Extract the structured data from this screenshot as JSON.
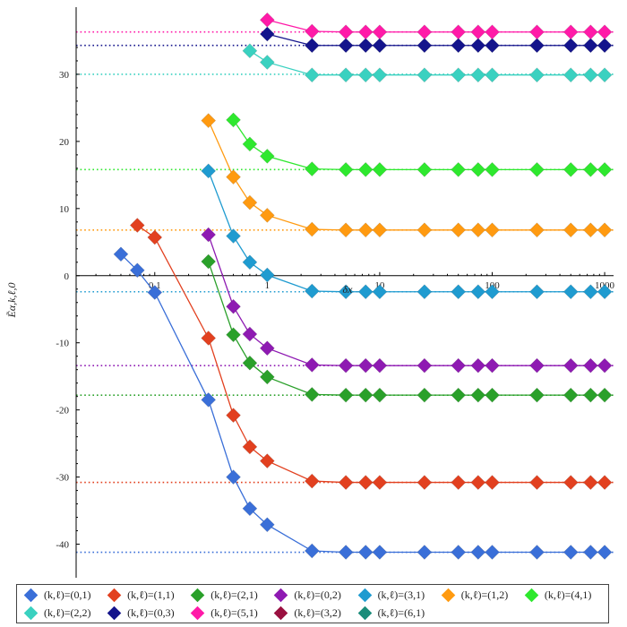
{
  "chart_data": {
    "type": "scatter",
    "title": "",
    "xlabel": "δx",
    "ylabel": "Ẽα,k,ℓ,0",
    "xscale": "log",
    "xlim": [
      0.02,
      1200
    ],
    "ylim": [
      -45,
      40
    ],
    "xticks": [
      0.1,
      1,
      10,
      100,
      1000
    ],
    "xtick_labels": [
      "0.1",
      "1",
      "10",
      "100",
      "1000"
    ],
    "yticks": [
      -40,
      -30,
      -20,
      -10,
      0,
      10,
      20,
      30
    ],
    "ytick_labels": [
      "-40",
      "-30",
      "-20",
      "-10",
      "0",
      "10",
      "20",
      "30"
    ],
    "legend_position": "bottom",
    "series": [
      {
        "name": "(k,ℓ)=(0,1)",
        "color": "#3a6fd8",
        "asymptote": -41.2,
        "x": [
          0.05,
          0.07,
          0.1,
          0.3,
          0.5,
          0.7,
          1,
          2.5,
          5,
          7.5,
          10,
          25,
          50,
          75,
          100,
          250,
          500,
          750,
          1000
        ],
        "y": [
          3.2,
          0.8,
          -2.5,
          -18.5,
          -30.0,
          -34.7,
          -37.1,
          -41.0,
          -41.2,
          -41.2,
          -41.2,
          -41.2,
          -41.2,
          -41.2,
          -41.2,
          -41.2,
          -41.2,
          -41.2,
          -41.2
        ]
      },
      {
        "name": "(k,ℓ)=(1,1)",
        "color": "#e2401f",
        "asymptote": -30.8,
        "x": [
          0.07,
          0.1,
          0.3,
          0.5,
          0.7,
          1,
          2.5,
          5,
          7.5,
          10,
          25,
          50,
          75,
          100,
          250,
          500,
          750,
          1000
        ],
        "y": [
          7.5,
          5.7,
          -9.3,
          -20.8,
          -25.5,
          -27.6,
          -30.6,
          -30.8,
          -30.8,
          -30.8,
          -30.8,
          -30.8,
          -30.8,
          -30.8,
          -30.8,
          -30.8,
          -30.8,
          -30.8
        ]
      },
      {
        "name": "(k,ℓ)=(2,1)",
        "color": "#2aa02a",
        "asymptote": -17.8,
        "x": [
          0.3,
          0.5,
          0.7,
          1,
          2.5,
          5,
          7.5,
          10,
          25,
          50,
          75,
          100,
          250,
          500,
          750,
          1000
        ],
        "y": [
          2.1,
          -8.8,
          -13.0,
          -15.1,
          -17.7,
          -17.8,
          -17.8,
          -17.8,
          -17.8,
          -17.8,
          -17.8,
          -17.8,
          -17.8,
          -17.8,
          -17.8,
          -17.8
        ]
      },
      {
        "name": "(k,ℓ)=(0,2)",
        "color": "#8e1ab2",
        "asymptote": -13.4,
        "x": [
          0.3,
          0.5,
          0.7,
          1,
          2.5,
          5,
          7.5,
          10,
          25,
          50,
          75,
          100,
          250,
          500,
          750,
          1000
        ],
        "y": [
          6.1,
          -4.6,
          -8.7,
          -10.8,
          -13.3,
          -13.4,
          -13.4,
          -13.4,
          -13.4,
          -13.4,
          -13.4,
          -13.4,
          -13.4,
          -13.4,
          -13.4,
          -13.4
        ]
      },
      {
        "name": "(k,ℓ)=(3,1)",
        "color": "#1f9bd0",
        "asymptote": -2.4,
        "x": [
          0.3,
          0.5,
          0.7,
          1,
          2.5,
          5,
          7.5,
          10,
          25,
          50,
          75,
          100,
          250,
          500,
          750,
          1000
        ],
        "y": [
          15.6,
          5.9,
          2.0,
          0.1,
          -2.3,
          -2.4,
          -2.4,
          -2.4,
          -2.4,
          -2.4,
          -2.4,
          -2.4,
          -2.4,
          -2.4,
          -2.4,
          -2.4
        ]
      },
      {
        "name": "(k,ℓ)=(1,2)",
        "color": "#ff9a10",
        "asymptote": 6.8,
        "x": [
          0.3,
          0.5,
          0.7,
          1,
          2.5,
          5,
          7.5,
          10,
          25,
          50,
          75,
          100,
          250,
          500,
          750,
          1000
        ],
        "y": [
          23.1,
          14.7,
          10.9,
          9.0,
          6.9,
          6.8,
          6.8,
          6.8,
          6.8,
          6.8,
          6.8,
          6.8,
          6.8,
          6.8,
          6.8,
          6.8
        ]
      },
      {
        "name": "(k,ℓ)=(4,1)",
        "color": "#2ee82e",
        "asymptote": 15.8,
        "x": [
          0.5,
          0.7,
          1,
          2.5,
          5,
          7.5,
          10,
          25,
          50,
          75,
          100,
          250,
          500,
          750,
          1000
        ],
        "y": [
          23.2,
          19.6,
          17.8,
          15.9,
          15.8,
          15.8,
          15.8,
          15.8,
          15.8,
          15.8,
          15.8,
          15.8,
          15.8,
          15.8,
          15.8
        ]
      },
      {
        "name": "(k,ℓ)=(2,2)",
        "color": "#3ad1c0",
        "asymptote": 30.0,
        "x": [
          0.7,
          1,
          2.5,
          5,
          7.5,
          10,
          25,
          50,
          75,
          100,
          250,
          500,
          750,
          1000
        ],
        "y": [
          33.5,
          31.8,
          29.9,
          29.9,
          29.9,
          29.9,
          29.9,
          29.9,
          29.9,
          29.9,
          29.9,
          29.9,
          29.9,
          29.9
        ]
      },
      {
        "name": "(k,ℓ)=(0,3)",
        "color": "#14148c",
        "asymptote": 34.3,
        "x": [
          1,
          2.5,
          5,
          7.5,
          10,
          25,
          50,
          75,
          100,
          250,
          500,
          750,
          1000
        ],
        "y": [
          36.0,
          34.3,
          34.3,
          34.3,
          34.3,
          34.3,
          34.3,
          34.3,
          34.3,
          34.3,
          34.3,
          34.3,
          34.3
        ]
      },
      {
        "name": "(k,ℓ)=(5,1)",
        "color": "#ff1aa8",
        "asymptote": 36.3,
        "x": [
          1,
          2.5,
          5,
          7.5,
          10,
          25,
          50,
          75,
          100,
          250,
          500,
          750,
          1000
        ],
        "y": [
          38.1,
          36.4,
          36.3,
          36.3,
          36.3,
          36.3,
          36.3,
          36.3,
          36.3,
          36.3,
          36.3,
          36.3,
          36.3
        ]
      },
      {
        "name": "(k,ℓ)=(3,2)",
        "color": "#9a1040",
        "asymptote": null,
        "x": [],
        "y": []
      },
      {
        "name": "(k,ℓ)=(6,1)",
        "color": "#1a8c7a",
        "asymptote": null,
        "x": [],
        "y": []
      }
    ]
  }
}
